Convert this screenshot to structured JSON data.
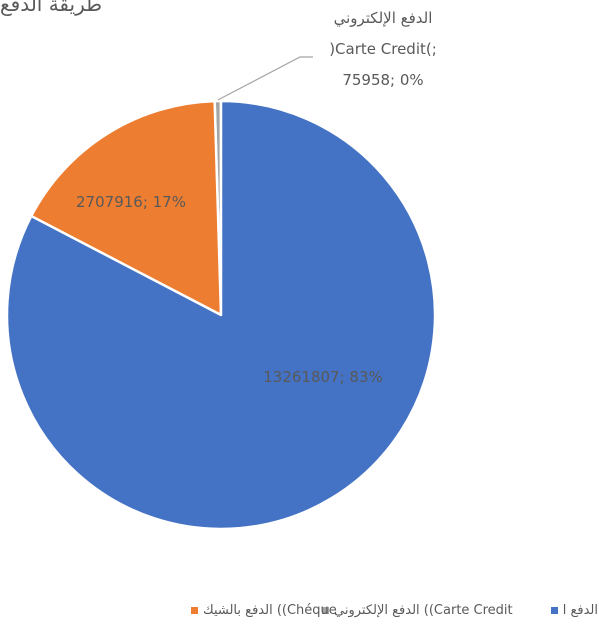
{
  "chart_data": {
    "type": "pie",
    "title": "طريقة الدفع",
    "series": [
      {
        "name": "",
        "slices": [
          {
            "label": "الدفع الإلكتروني (Carte Credit)",
            "value": 75958,
            "percent": 0,
            "color": "#a5a5a5",
            "data_label_lines": [
              "الدفع الإلكتروني",
              ")Carte Credit(;",
              "75958; 0%"
            ]
          },
          {
            "label": "الدفع بالشيك (Chéque)",
            "value": 2707916,
            "percent": 17,
            "color": "#ed7d31",
            "data_label_lines": [
              "2707916; 17%"
            ]
          },
          {
            "label": "الدفع",
            "value": 13261807,
            "percent": 83,
            "color": "#4472c4",
            "data_label_lines": [
              "13261807; 83%"
            ]
          }
        ]
      }
    ],
    "legend": {
      "placement": "bottom",
      "entries": [
        {
          "text": "الدفع الإلكتروني ((Carte Credit",
          "color": "#a5a5a5"
        },
        {
          "text": "الدفع بالشيك ((Chéque",
          "color": "#ed7d31"
        },
        {
          "text": "الدفع ا",
          "color": "#4472c4"
        }
      ]
    },
    "colors": {
      "cash": "#4472c4",
      "cheque": "#ed7d31",
      "card": "#a5a5a5",
      "text": "#595959",
      "leader_line": "#a5a5a5"
    }
  }
}
